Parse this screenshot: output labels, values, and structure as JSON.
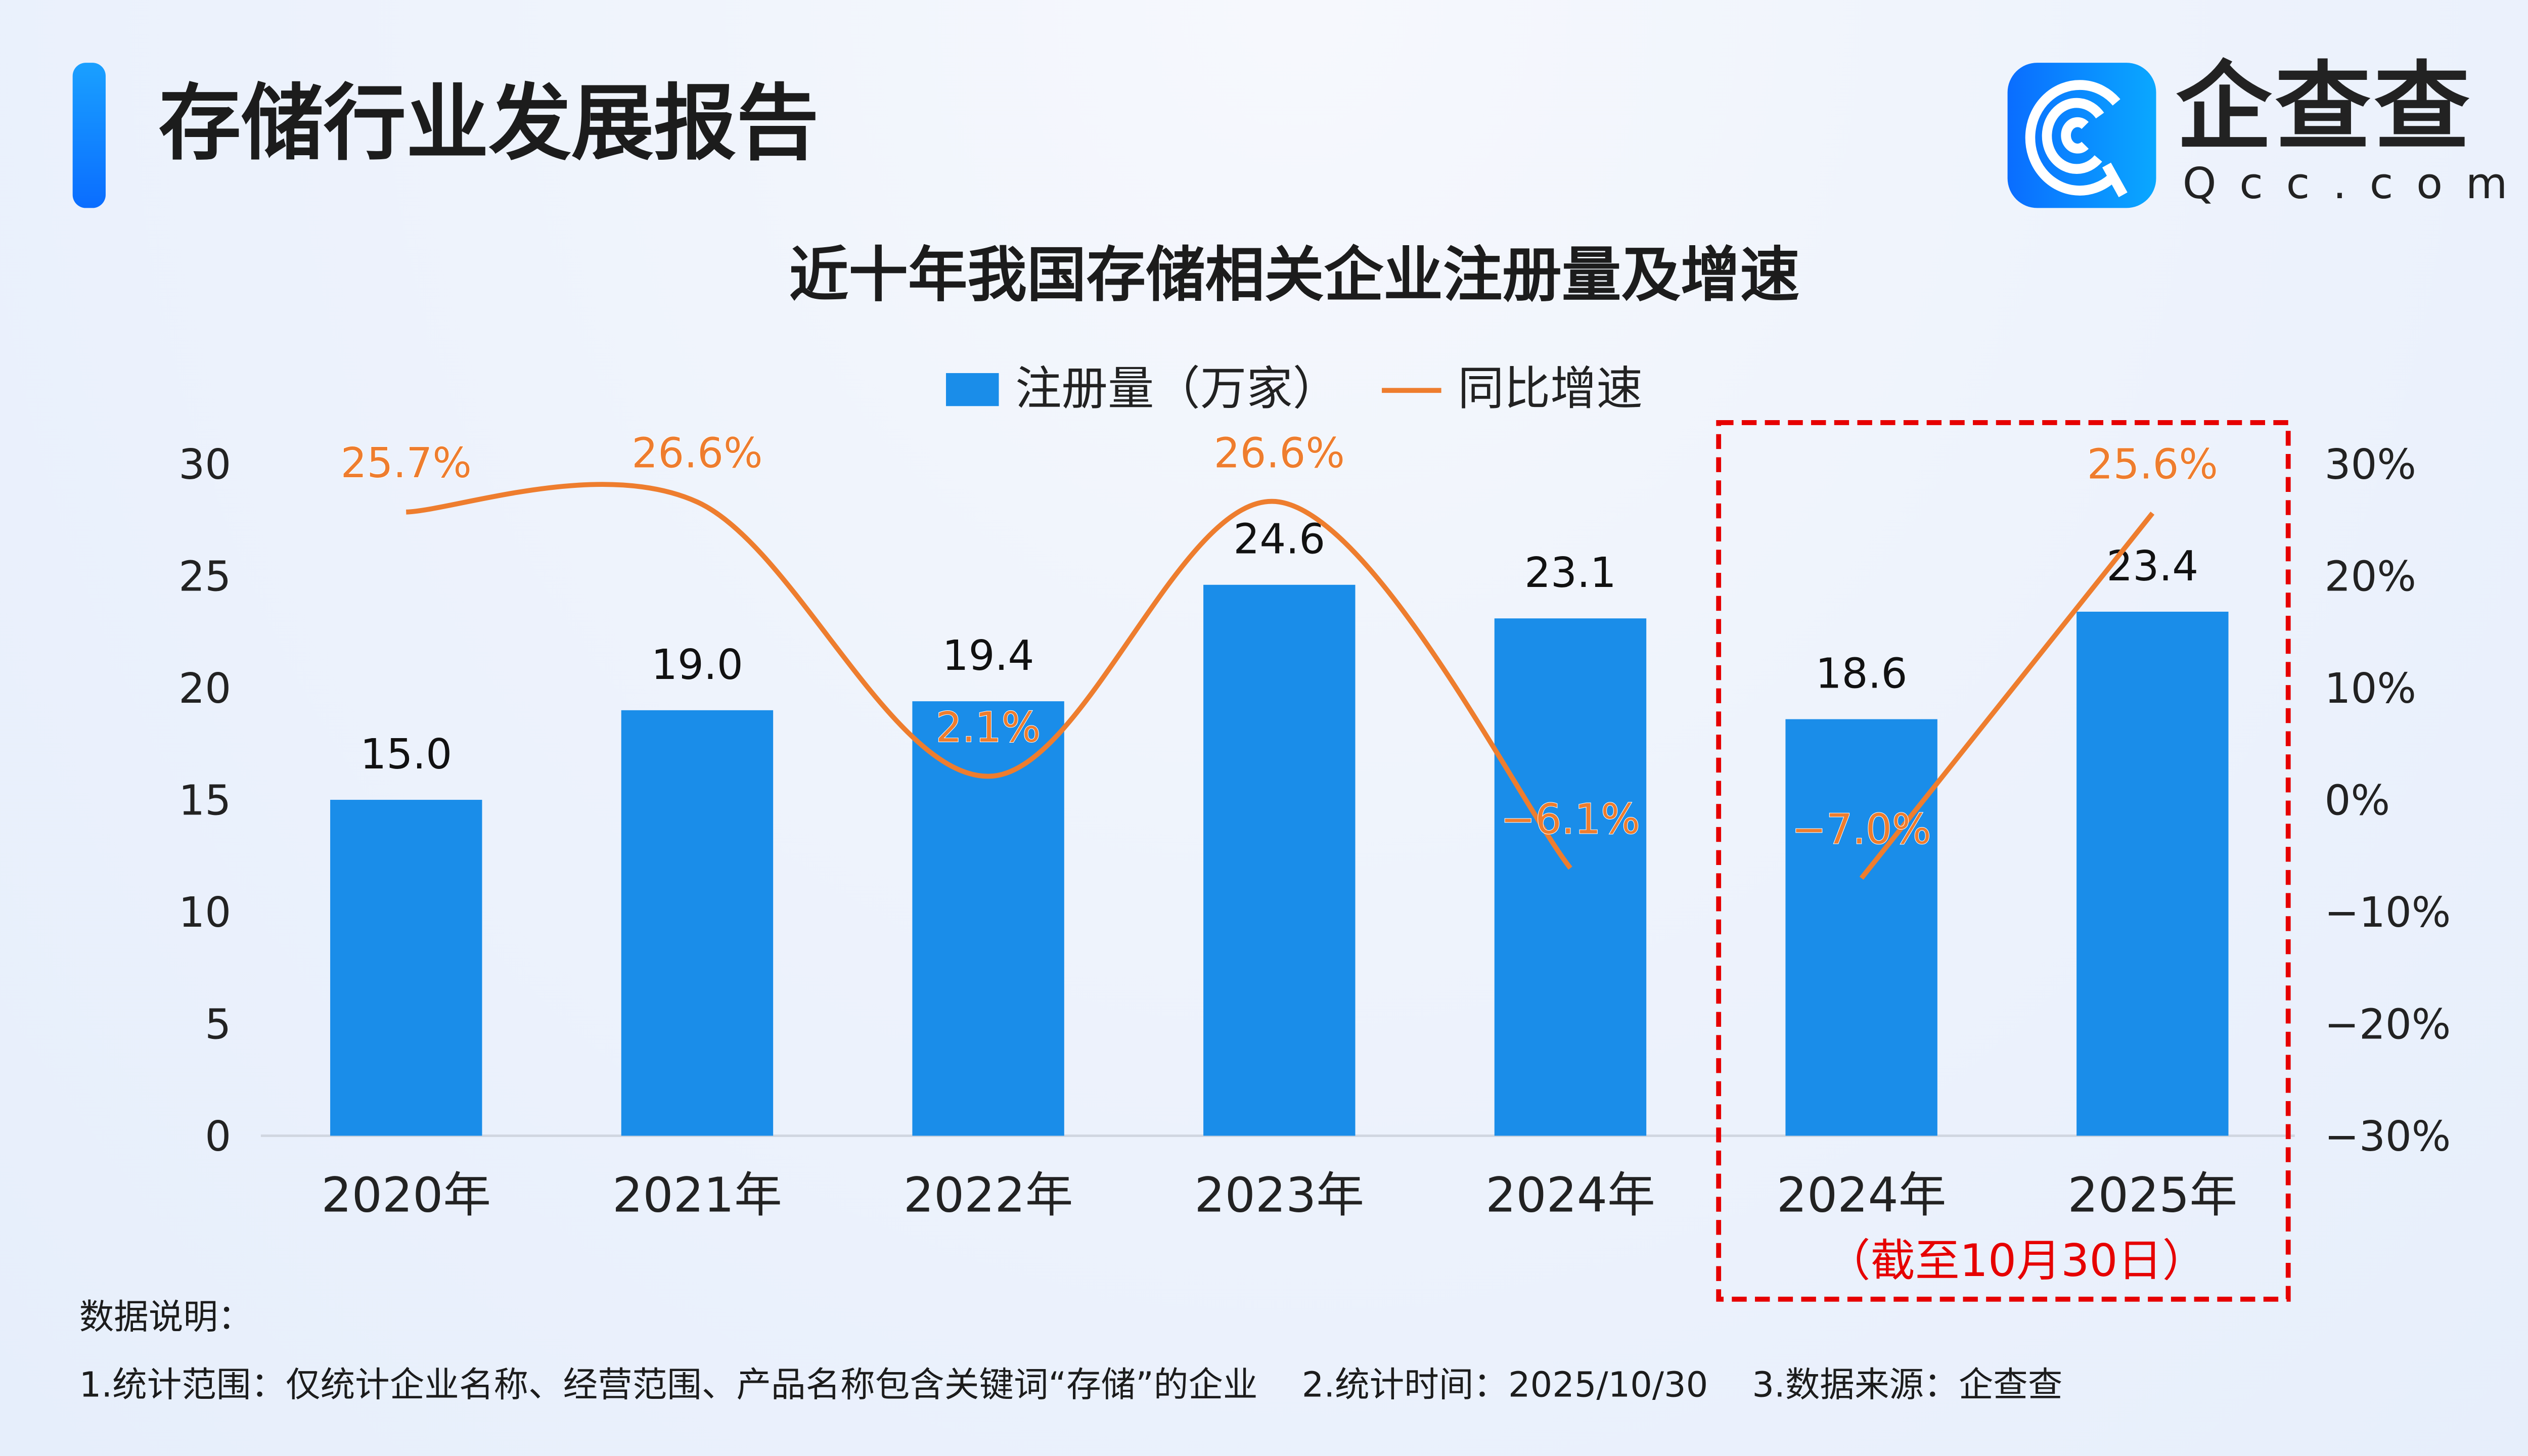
{
  "header": {
    "title": "存储行业发展报告",
    "logo_cn": "企查查",
    "logo_en": "Qcc.com"
  },
  "chart_data": {
    "type": "bar+line",
    "title": "近十年我国存储相关企业注册量及增速",
    "legend": {
      "placement": "top",
      "entries": [
        "注册量（万家）",
        "同比增速"
      ]
    },
    "categories": [
      "2020年",
      "2021年",
      "2022年",
      "2023年",
      "2024年",
      "2024年",
      "2025年"
    ],
    "series": [
      {
        "name": "注册量（万家）",
        "type": "bar",
        "axis": "left",
        "color": "#1a8de9",
        "values": [
          15.0,
          19.0,
          19.4,
          24.6,
          23.1,
          18.6,
          23.4
        ],
        "labels": [
          "15.0",
          "19.0",
          "19.4",
          "24.6",
          "23.1",
          "18.6",
          "23.4"
        ]
      },
      {
        "name": "同比增速",
        "type": "line",
        "axis": "right",
        "color": "#ee7d2e",
        "segments": [
          [
            0,
            1,
            2,
            3,
            4
          ],
          [
            5,
            6
          ]
        ],
        "values": [
          25.7,
          26.6,
          2.1,
          26.6,
          -6.1,
          -7.0,
          25.6
        ],
        "labels": [
          "25.7%",
          "26.6%",
          "2.1%",
          "26.6%",
          "-6.1%",
          "-7.0%",
          "25.6%"
        ]
      }
    ],
    "left_axis": {
      "range": [
        0,
        30
      ],
      "ticks": [
        "0",
        "5",
        "10",
        "15",
        "20",
        "25",
        "30"
      ]
    },
    "right_axis": {
      "range": [
        -30,
        30
      ],
      "ticks": [
        "-30%",
        "-20%",
        "-10%",
        "0%",
        "10%",
        "20%",
        "30%"
      ]
    },
    "grid": false,
    "highlight": {
      "color": "#e60000",
      "note": "（截至10月30日）"
    }
  },
  "notes": {
    "heading": "数据说明：",
    "item1": "1.统计范围：仅统计企业名称、经营范围、产品名称包含关键词“存储”的企业",
    "item2": "2.统计时间：2025/10/30",
    "item3": "3.数据来源：企查查"
  }
}
